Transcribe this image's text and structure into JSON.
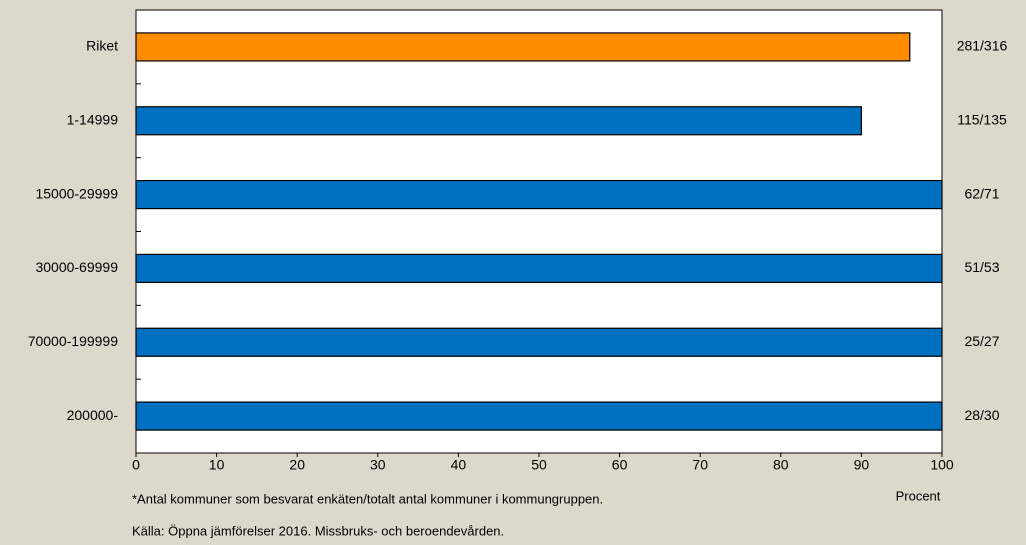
{
  "chart_data": {
    "type": "bar",
    "orientation": "horizontal",
    "categories": [
      "Riket",
      "1-14999",
      "15000-29999",
      "30000-69999",
      "70000-199999",
      "200000-"
    ],
    "values": [
      96,
      90,
      100,
      100,
      100,
      100
    ],
    "colors": [
      "#ff8c00",
      "#0070c0",
      "#0070c0",
      "#0070c0",
      "#0070c0",
      "#0070c0"
    ],
    "right_labels": [
      "281/316",
      "115/135",
      "62/71",
      "51/53",
      "25/27",
      "28/30"
    ],
    "xlim": [
      0,
      100
    ],
    "xticks": [
      0,
      10,
      20,
      30,
      40,
      50,
      60,
      70,
      80,
      90,
      100
    ],
    "xlabel": "Procent",
    "notes": [
      "*Antal  kommuner som besvarat enkäten/totalt antal kommuner i kommungruppen.",
      "Källa:  Öppna jämförelser 2016. Missbruks- och beroendevården."
    ]
  }
}
